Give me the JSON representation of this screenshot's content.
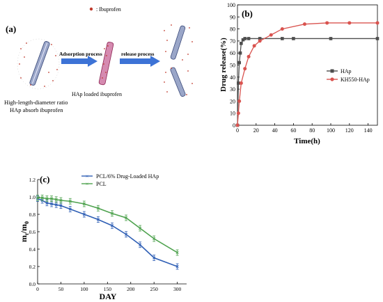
{
  "panel_a": {
    "label": "(a)",
    "legend_text": ": Ibuprofen",
    "process_1": "Adsorption process",
    "process_2": "release process",
    "caption_left_1": "High-length-diameter ratio",
    "caption_left_2": "HAp absorb ibuprofen",
    "caption_mid": "HAp loaded ibuprofen"
  },
  "chart_data": [
    {
      "type": "line",
      "label": "(b)",
      "xlabel": "Time(h)",
      "ylabel": "Drug release(%)",
      "xlim": [
        0,
        150
      ],
      "ylim": [
        0,
        100
      ],
      "xticks": [
        0,
        20,
        40,
        60,
        80,
        100,
        120,
        140
      ],
      "yticks": [
        0,
        10,
        20,
        30,
        40,
        50,
        60,
        70,
        80,
        90,
        100
      ],
      "legend_position": "center-right",
      "series": [
        {
          "name": "HAp",
          "color": "#4d4d4d",
          "marker": "square",
          "x": [
            0,
            1,
            2,
            3,
            4,
            6,
            8,
            12,
            24,
            48,
            60,
            100,
            150
          ],
          "y": [
            0,
            35,
            52,
            60,
            68,
            71,
            72,
            72,
            72,
            72,
            72,
            72,
            72
          ]
        },
        {
          "name": "KH550-HAp",
          "color": "#d9534f",
          "marker": "circle",
          "x": [
            0,
            1,
            2,
            4,
            8,
            12,
            18,
            24,
            36,
            48,
            72,
            96,
            120,
            150
          ],
          "y": [
            0,
            10,
            20,
            35,
            47,
            57,
            66,
            70,
            75,
            80,
            84,
            85,
            85,
            85
          ]
        }
      ]
    },
    {
      "type": "line",
      "label": "(c)",
      "xlabel": "DAY",
      "ylabel": "mt/m0",
      "ylabel_main": "m",
      "ylabel_sub1": "t",
      "ylabel_sep": "/m",
      "ylabel_sub2": "0",
      "xlim": [
        0,
        320
      ],
      "ylim": [
        0,
        1.2
      ],
      "xticks": [
        0,
        50,
        100,
        150,
        200,
        250,
        300
      ],
      "yticks": [
        0.0,
        0.2,
        0.4,
        0.6,
        0.8,
        1.0,
        1.2
      ],
      "legend_position": "top-right",
      "series": [
        {
          "name": "PCL/6% Drug-Loaded HAp",
          "color": "#2f5fb5",
          "marker": "cross",
          "x": [
            0,
            10,
            20,
            30,
            40,
            50,
            70,
            100,
            130,
            160,
            190,
            220,
            250,
            300
          ],
          "y": [
            0.98,
            0.96,
            0.93,
            0.92,
            0.91,
            0.9,
            0.86,
            0.8,
            0.74,
            0.67,
            0.57,
            0.45,
            0.3,
            0.2
          ]
        },
        {
          "name": "PCL",
          "color": "#4ea24e",
          "marker": "cross",
          "x": [
            0,
            10,
            20,
            30,
            40,
            50,
            70,
            100,
            130,
            160,
            190,
            220,
            250,
            300
          ],
          "y": [
            0.99,
            0.99,
            0.98,
            0.98,
            0.97,
            0.96,
            0.95,
            0.92,
            0.87,
            0.81,
            0.76,
            0.64,
            0.52,
            0.36
          ]
        }
      ]
    }
  ]
}
